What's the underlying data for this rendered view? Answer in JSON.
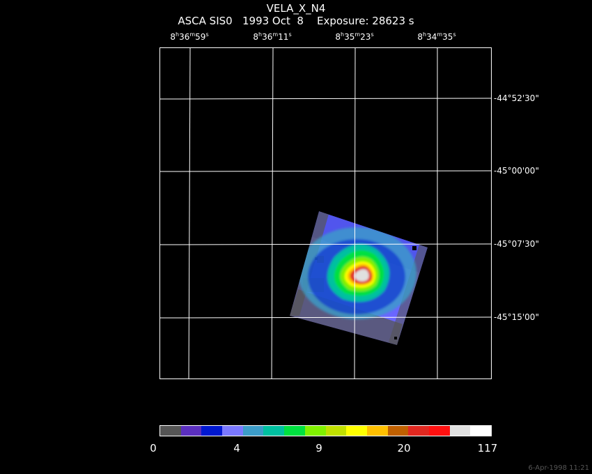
{
  "header": {
    "title": "VELA_X_N4",
    "subtitle": "ASCA SIS0   1993 Oct  8    Exposure: 28623 s"
  },
  "ra_ticks": [
    {
      "h": "8",
      "m": "36",
      "s": "59"
    },
    {
      "h": "8",
      "m": "36",
      "s": "11"
    },
    {
      "h": "8",
      "m": "35",
      "s": "23"
    },
    {
      "h": "8",
      "m": "34",
      "s": "35"
    }
  ],
  "dec_ticks": [
    "-44°52'30\"",
    "-45°00'00\"",
    "-45°07'30\"",
    "-45°15'00\""
  ],
  "colorbar": {
    "labels": [
      "0",
      "4",
      "9",
      "20",
      "117"
    ],
    "colors": [
      "#555555",
      "#5b2fbf",
      "#0018d0",
      "#7a78ff",
      "#3c9cc8",
      "#00c0a0",
      "#00e040",
      "#80f000",
      "#c0e000",
      "#ffff00",
      "#ffc000",
      "#c06000",
      "#e02820",
      "#ff1010",
      "#e0e0e0",
      "#ffffff"
    ]
  },
  "footer": {
    "timestamp": "6-Apr-1998 11:21"
  }
}
